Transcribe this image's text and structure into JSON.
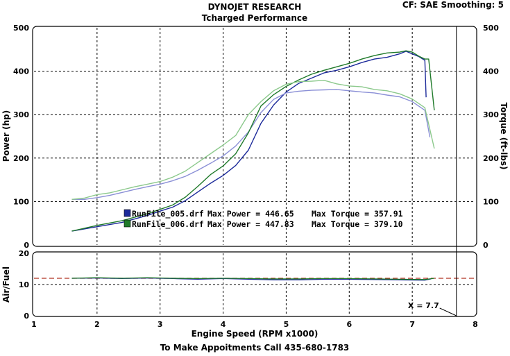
{
  "header": {
    "title": "DYNOJET RESEARCH",
    "subtitle": "Tcharged Performance",
    "settings": "CF: SAE  Smoothing: 5"
  },
  "footer": {
    "contact": "To Make Appoitments Call 435-680-1783"
  },
  "colors": {
    "run5_power": "#1c2a9a",
    "run5_torque": "#8a8fd6",
    "run6_power": "#1f7a2a",
    "run6_torque": "#8cc98c",
    "afr_target": "#b03020",
    "cursor": "#000000"
  },
  "chart_data": [
    {
      "type": "line",
      "title": "DYNOJET RESEARCH",
      "subtitle": "Tcharged Performance",
      "ylabel": "Power (hp)",
      "y2label": "Torque (ft-lbs)",
      "xlim": [
        1,
        8
      ],
      "ylim": [
        0,
        500
      ],
      "y2lim": [
        0,
        500
      ],
      "yticks": [
        0,
        100,
        200,
        300,
        400,
        500
      ],
      "grid": true,
      "legend_position": "bottom-left",
      "legend": [
        {
          "file": "RunFile_005.drf",
          "max_power_label": "Max Power = 446.65",
          "max_torque_label": "Max Torque = 357.91",
          "color": "#1c2a9a"
        },
        {
          "file": "RunFile_006.drf",
          "max_power_label": "Max Power = 447.83",
          "max_torque_label": "Max Torque = 379.10",
          "color": "#1f7a2a"
        }
      ],
      "series": [
        {
          "file": "RunFile_005.drf",
          "kind": "power",
          "axis": "left",
          "color": "#1c2a9a",
          "points": [
            [
              1.6,
              32
            ],
            [
              2.0,
              42
            ],
            [
              2.4,
              52
            ],
            [
              2.8,
              68
            ],
            [
              3.0,
              78
            ],
            [
              3.2,
              87
            ],
            [
              3.4,
              102
            ],
            [
              3.6,
              122
            ],
            [
              3.8,
              142
            ],
            [
              4.0,
              160
            ],
            [
              4.2,
              183
            ],
            [
              4.4,
              218
            ],
            [
              4.6,
              280
            ],
            [
              4.8,
              322
            ],
            [
              5.0,
              352
            ],
            [
              5.2,
              372
            ],
            [
              5.4,
              384
            ],
            [
              5.6,
              396
            ],
            [
              5.8,
              402
            ],
            [
              6.0,
              410
            ],
            [
              6.2,
              420
            ],
            [
              6.4,
              428
            ],
            [
              6.6,
              432
            ],
            [
              6.8,
              440
            ],
            [
              6.9,
              446
            ],
            [
              7.0,
              440
            ],
            [
              7.1,
              434
            ],
            [
              7.2,
              425
            ],
            [
              7.22,
              340
            ]
          ]
        },
        {
          "file": "RunFile_005.drf",
          "kind": "torque",
          "axis": "right",
          "color": "#8a8fd6",
          "points": [
            [
              1.6,
              105
            ],
            [
              1.8,
              105
            ],
            [
              2.0,
              109
            ],
            [
              2.2,
              114
            ],
            [
              2.4,
              121
            ],
            [
              2.6,
              128
            ],
            [
              2.8,
              134
            ],
            [
              3.0,
              140
            ],
            [
              3.2,
              148
            ],
            [
              3.4,
              158
            ],
            [
              3.6,
              172
            ],
            [
              3.8,
              188
            ],
            [
              4.0,
              205
            ],
            [
              4.2,
              228
            ],
            [
              4.4,
              260
            ],
            [
              4.6,
              305
            ],
            [
              4.8,
              335
            ],
            [
              5.0,
              350
            ],
            [
              5.2,
              354
            ],
            [
              5.4,
              356
            ],
            [
              5.6,
              357
            ],
            [
              5.8,
              358
            ],
            [
              6.0,
              355
            ],
            [
              6.2,
              352
            ],
            [
              6.4,
              350
            ],
            [
              6.6,
              345
            ],
            [
              6.8,
              341
            ],
            [
              7.0,
              330
            ],
            [
              7.2,
              310
            ],
            [
              7.28,
              248
            ]
          ]
        },
        {
          "file": "RunFile_006.drf",
          "kind": "power",
          "axis": "left",
          "color": "#1f7a2a",
          "points": [
            [
              1.6,
              32
            ],
            [
              2.0,
              45
            ],
            [
              2.4,
              56
            ],
            [
              2.8,
              72
            ],
            [
              3.0,
              82
            ],
            [
              3.2,
              92
            ],
            [
              3.4,
              110
            ],
            [
              3.6,
              135
            ],
            [
              3.8,
              162
            ],
            [
              4.0,
              182
            ],
            [
              4.2,
              210
            ],
            [
              4.4,
              258
            ],
            [
              4.6,
              320
            ],
            [
              4.8,
              346
            ],
            [
              5.0,
              365
            ],
            [
              5.2,
              380
            ],
            [
              5.4,
              393
            ],
            [
              5.6,
              402
            ],
            [
              5.8,
              410
            ],
            [
              6.0,
              418
            ],
            [
              6.2,
              428
            ],
            [
              6.4,
              436
            ],
            [
              6.6,
              442
            ],
            [
              6.8,
              444
            ],
            [
              6.9,
              447
            ],
            [
              7.0,
              444
            ],
            [
              7.1,
              435
            ],
            [
              7.2,
              428
            ],
            [
              7.26,
              428
            ],
            [
              7.35,
              310
            ]
          ]
        },
        {
          "file": "RunFile_006.drf",
          "kind": "torque",
          "axis": "right",
          "color": "#8cc98c",
          "points": [
            [
              1.6,
              105
            ],
            [
              1.8,
              108
            ],
            [
              2.0,
              116
            ],
            [
              2.2,
              120
            ],
            [
              2.4,
              127
            ],
            [
              2.6,
              134
            ],
            [
              2.8,
              140
            ],
            [
              3.0,
              146
            ],
            [
              3.2,
              156
            ],
            [
              3.4,
              170
            ],
            [
              3.6,
              190
            ],
            [
              3.8,
              210
            ],
            [
              4.0,
              230
            ],
            [
              4.2,
              252
            ],
            [
              4.4,
              300
            ],
            [
              4.6,
              330
            ],
            [
              4.8,
              355
            ],
            [
              5.0,
              370
            ],
            [
              5.2,
              376
            ],
            [
              5.4,
              377
            ],
            [
              5.6,
              379
            ],
            [
              5.8,
              371
            ],
            [
              6.0,
              366
            ],
            [
              6.2,
              364
            ],
            [
              6.4,
              358
            ],
            [
              6.6,
              355
            ],
            [
              6.8,
              348
            ],
            [
              7.0,
              336
            ],
            [
              7.2,
              316
            ],
            [
              7.35,
              222
            ]
          ]
        }
      ]
    },
    {
      "type": "line",
      "ylabel": "Air/Fuel",
      "xlabel": "Engine Speed (RPM x1000)",
      "xlim": [
        1,
        8
      ],
      "ylim": [
        0,
        20
      ],
      "yticks": [
        0,
        10,
        20
      ],
      "xticks": [
        1,
        2,
        3,
        4,
        5,
        6,
        7,
        8
      ],
      "grid": true,
      "cursor": {
        "x": 7.7,
        "label": "X = 7.7"
      },
      "reference_line": {
        "y": 12,
        "color": "#b03020",
        "style": "dashed"
      },
      "series": [
        {
          "file": "RunFile_005.drf",
          "color": "#1c2a9a",
          "points": [
            [
              1.6,
              12.0
            ],
            [
              2.0,
              12.1
            ],
            [
              2.4,
              11.9
            ],
            [
              2.8,
              12.1
            ],
            [
              3.2,
              11.9
            ],
            [
              3.6,
              11.7
            ],
            [
              4.0,
              11.9
            ],
            [
              4.4,
              11.7
            ],
            [
              4.8,
              11.5
            ],
            [
              5.2,
              11.5
            ],
            [
              5.6,
              11.7
            ],
            [
              6.0,
              11.7
            ],
            [
              6.4,
              11.6
            ],
            [
              6.8,
              11.5
            ],
            [
              7.2,
              11.4
            ],
            [
              7.3,
              11.8
            ]
          ]
        },
        {
          "file": "RunFile_006.drf",
          "color": "#1f7a2a",
          "points": [
            [
              1.6,
              12.0
            ],
            [
              2.0,
              12.2
            ],
            [
              2.4,
              12.0
            ],
            [
              2.8,
              12.2
            ],
            [
              3.2,
              12.0
            ],
            [
              3.6,
              11.9
            ],
            [
              4.0,
              12.0
            ],
            [
              4.4,
              11.9
            ],
            [
              4.8,
              11.8
            ],
            [
              5.2,
              11.8
            ],
            [
              5.6,
              11.9
            ],
            [
              6.0,
              11.9
            ],
            [
              6.4,
              11.8
            ],
            [
              6.8,
              11.7
            ],
            [
              7.2,
              11.6
            ],
            [
              7.35,
              12.0
            ]
          ]
        }
      ]
    }
  ]
}
